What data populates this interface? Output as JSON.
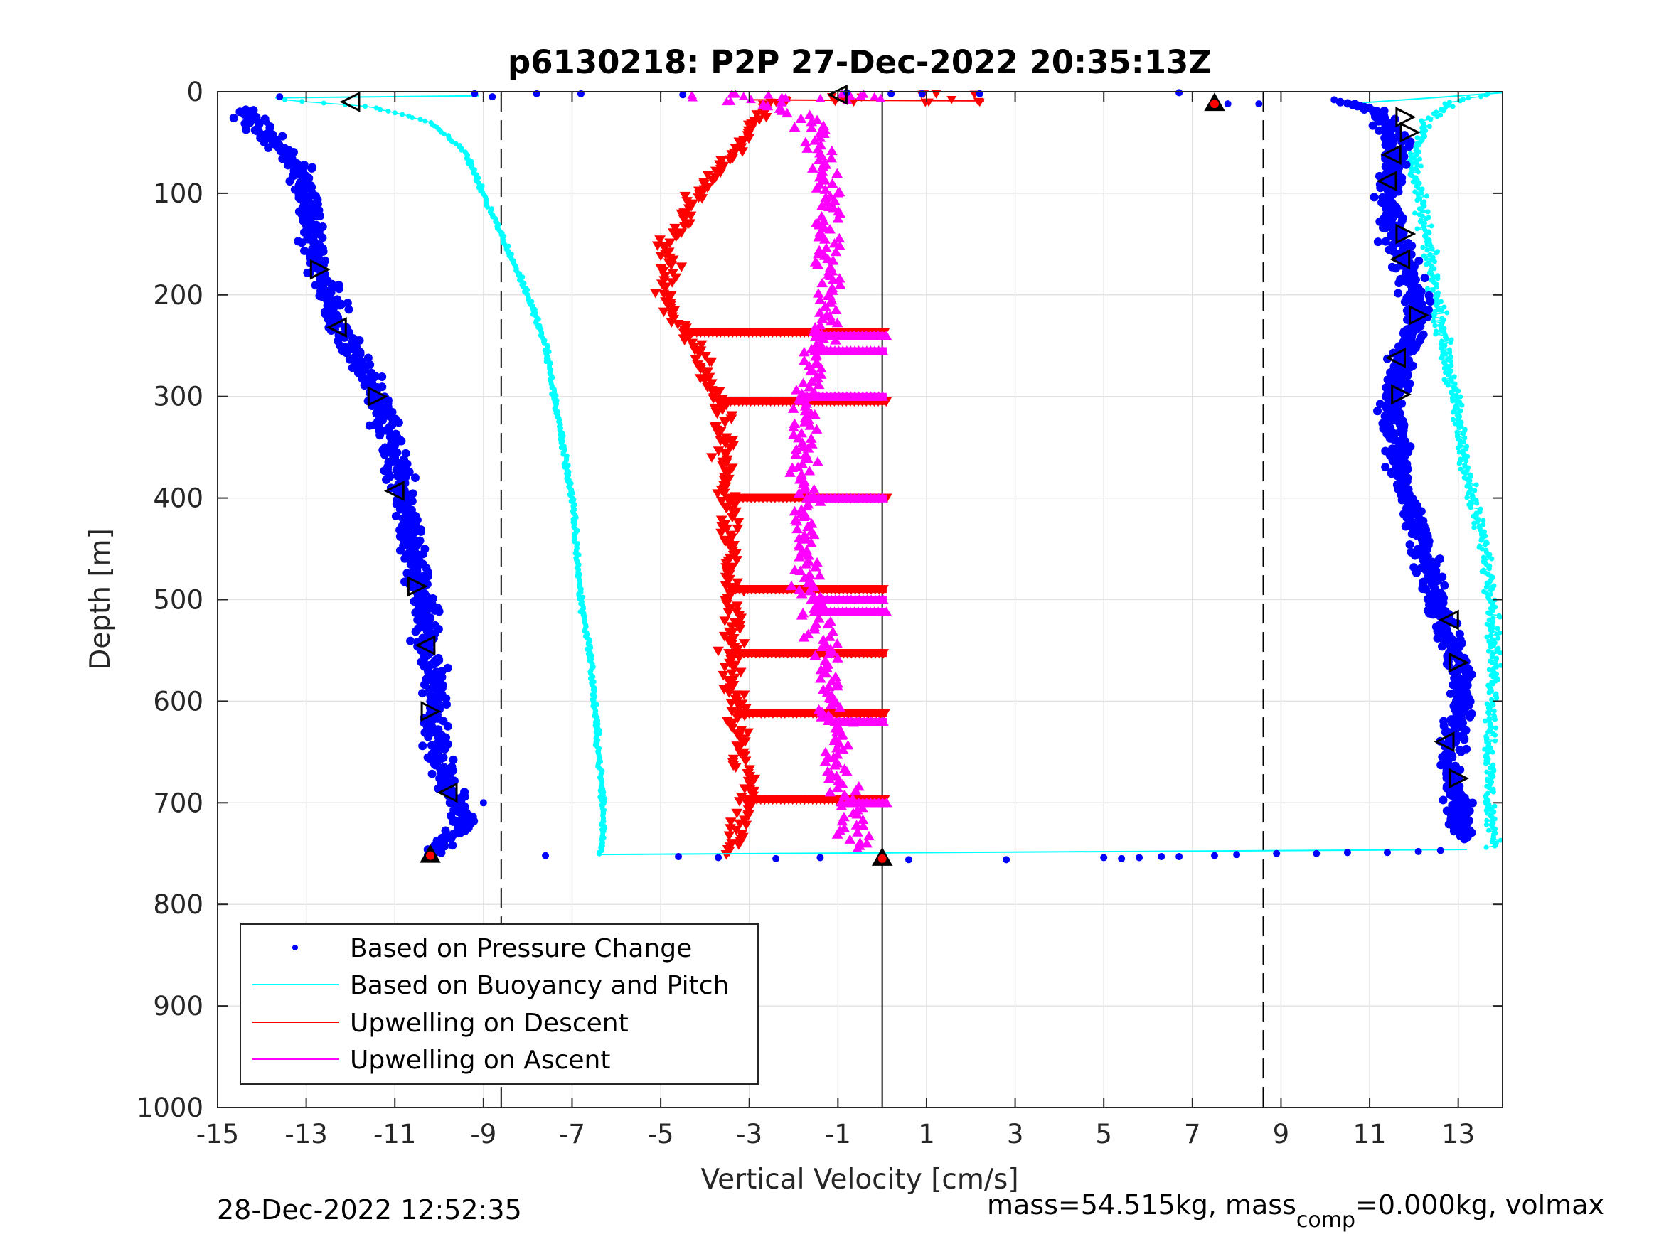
{
  "chart_data": {
    "type": "scatter",
    "title": "p6130218: P2P 27-Dec-2022 20:35:13Z",
    "xlabel": "Vertical Velocity [cm/s]",
    "ylabel": "Depth [m]",
    "xlim": [
      -15,
      14
    ],
    "ylim": [
      0,
      1000
    ],
    "y_reversed": true,
    "grid": true,
    "legend_position": "bottom-left",
    "xticks": [
      "-15",
      "-13",
      "-11",
      "-9",
      "-7",
      "-5",
      "-3",
      "-1",
      "1",
      "3",
      "5",
      "7",
      "9",
      "11",
      "13"
    ],
    "yticks": [
      "0",
      "100",
      "200",
      "300",
      "400",
      "500",
      "600",
      "700",
      "800",
      "900",
      "1000"
    ],
    "reference_lines": {
      "dashed_x": [
        -8.6,
        8.6
      ],
      "solid_x": [
        0
      ]
    },
    "series": [
      {
        "name": "Based on Pressure Change",
        "color": "#0000ff",
        "marker": "dot",
        "descent": [
          [
            -14.3,
            20
          ],
          [
            -14.0,
            40
          ],
          [
            -13.5,
            60
          ],
          [
            -13.1,
            80
          ],
          [
            -13.0,
            100
          ],
          [
            -12.9,
            120
          ],
          [
            -12.8,
            150
          ],
          [
            -12.7,
            180
          ],
          [
            -12.5,
            200
          ],
          [
            -12.3,
            230
          ],
          [
            -11.9,
            260
          ],
          [
            -11.4,
            300
          ],
          [
            -11.1,
            340
          ],
          [
            -10.9,
            380
          ],
          [
            -10.7,
            420
          ],
          [
            -10.5,
            460
          ],
          [
            -10.4,
            500
          ],
          [
            -10.3,
            540
          ],
          [
            -10.1,
            580
          ],
          [
            -10.1,
            620
          ],
          [
            -10.0,
            660
          ],
          [
            -9.7,
            690
          ],
          [
            -9.4,
            710
          ],
          [
            -9.6,
            730
          ],
          [
            -10.0,
            745
          ],
          [
            -10.2,
            752
          ]
        ],
        "ascent": [
          [
            13.2,
            730
          ],
          [
            13.0,
            700
          ],
          [
            12.8,
            660
          ],
          [
            13.0,
            620
          ],
          [
            13.1,
            580
          ],
          [
            12.8,
            540
          ],
          [
            12.5,
            500
          ],
          [
            12.3,
            460
          ],
          [
            12.0,
            420
          ],
          [
            11.7,
            380
          ],
          [
            11.6,
            340
          ],
          [
            11.5,
            300
          ],
          [
            11.7,
            270
          ],
          [
            12.0,
            240
          ],
          [
            12.1,
            210
          ],
          [
            11.9,
            180
          ],
          [
            11.6,
            150
          ],
          [
            11.4,
            110
          ],
          [
            11.5,
            80
          ],
          [
            11.6,
            50
          ],
          [
            11.4,
            30
          ],
          [
            11.0,
            15
          ],
          [
            10.2,
            10
          ]
        ]
      },
      {
        "name": "Based on Buoyancy and Pitch",
        "color": "#00ffff",
        "marker": "line",
        "descent": [
          [
            -13.5,
            8
          ],
          [
            -11.5,
            15
          ],
          [
            -10.2,
            30
          ],
          [
            -9.4,
            60
          ],
          [
            -9.0,
            100
          ],
          [
            -8.5,
            150
          ],
          [
            -8.0,
            200
          ],
          [
            -7.6,
            250
          ],
          [
            -7.4,
            300
          ],
          [
            -7.2,
            350
          ],
          [
            -7.0,
            400
          ],
          [
            -6.9,
            450
          ],
          [
            -6.8,
            500
          ],
          [
            -6.6,
            550
          ],
          [
            -6.5,
            600
          ],
          [
            -6.4,
            650
          ],
          [
            -6.3,
            700
          ],
          [
            -6.3,
            740
          ],
          [
            -6.4,
            752
          ]
        ],
        "ascent": [
          [
            13.8,
            740
          ],
          [
            13.7,
            700
          ],
          [
            13.7,
            650
          ],
          [
            13.8,
            600
          ],
          [
            13.8,
            550
          ],
          [
            13.8,
            500
          ],
          [
            13.6,
            450
          ],
          [
            13.3,
            400
          ],
          [
            13.1,
            350
          ],
          [
            12.9,
            300
          ],
          [
            12.7,
            250
          ],
          [
            12.5,
            200
          ],
          [
            12.3,
            150
          ],
          [
            12.1,
            100
          ],
          [
            12.0,
            60
          ],
          [
            12.3,
            30
          ],
          [
            12.9,
            10
          ],
          [
            13.8,
            2
          ]
        ]
      },
      {
        "name": "Upwelling on Descent",
        "color": "#ff0000",
        "marker": "triangle-down",
        "profile": [
          [
            -2.7,
            20
          ],
          [
            -3.3,
            60
          ],
          [
            -4.2,
            100
          ],
          [
            -4.8,
            150
          ],
          [
            -4.9,
            200
          ],
          [
            -4.3,
            250
          ],
          [
            -3.7,
            300
          ],
          [
            -3.6,
            350
          ],
          [
            -3.5,
            400
          ],
          [
            -3.4,
            450
          ],
          [
            -3.4,
            500
          ],
          [
            -3.4,
            550
          ],
          [
            -3.3,
            600
          ],
          [
            -3.2,
            650
          ],
          [
            -3.0,
            700
          ],
          [
            -3.3,
            740
          ],
          [
            -3.5,
            752
          ]
        ],
        "spikes_depth": [
          237,
          305,
          400,
          490,
          553,
          612,
          697
        ]
      },
      {
        "name": "Upwelling on Ascent",
        "color": "#ff00ff",
        "marker": "triangle-up",
        "profile": [
          [
            -0.6,
            740
          ],
          [
            -0.8,
            700
          ],
          [
            -1.0,
            650
          ],
          [
            -1.1,
            600
          ],
          [
            -1.3,
            550
          ],
          [
            -1.6,
            500
          ],
          [
            -1.7,
            450
          ],
          [
            -1.7,
            400
          ],
          [
            -1.8,
            350
          ],
          [
            -1.7,
            300
          ],
          [
            -1.5,
            250
          ],
          [
            -1.2,
            200
          ],
          [
            -1.3,
            150
          ],
          [
            -1.2,
            100
          ],
          [
            -1.4,
            60
          ],
          [
            -1.6,
            30
          ],
          [
            -2.5,
            10
          ]
        ],
        "spikes_depth": [
          240,
          255,
          300,
          400,
          500,
          512,
          620,
          700
        ]
      }
    ]
  },
  "legend": {
    "items": [
      {
        "label": "Based on Pressure Change",
        "color": "#0000ff",
        "style": "dot"
      },
      {
        "label": "Based on Buoyancy and Pitch",
        "color": "#00ffff",
        "style": "line"
      },
      {
        "label": "Upwelling on Descent",
        "color": "#ff0000",
        "style": "line"
      },
      {
        "label": "Upwelling on Ascent",
        "color": "#ff00ff",
        "style": "line"
      }
    ]
  },
  "footer": {
    "left": "28-Dec-2022 12:52:35",
    "right_prefix": "mass=54.515kg, mass",
    "right_sub": "comp",
    "right_suffix": "=0.000kg, volmax"
  }
}
